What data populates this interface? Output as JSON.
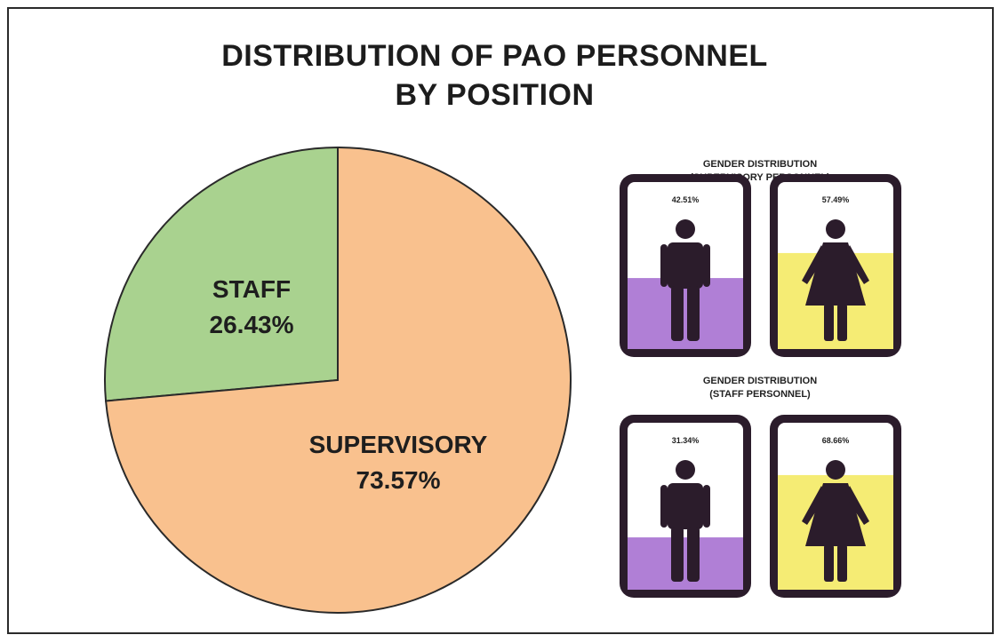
{
  "title_line1": "DISTRIBUTION OF PAO PERSONNEL",
  "title_line2": "BY POSITION",
  "chart_data": [
    {
      "type": "pie",
      "title": "DISTRIBUTION OF PAO PERSONNEL BY POSITION",
      "slices": [
        {
          "label": "STAFF",
          "value": 26.43,
          "value_label": "26.43%",
          "color": "#a9d28f"
        },
        {
          "label": "SUPERVISORY",
          "value": 73.57,
          "value_label": "73.57%",
          "color": "#f9c18e"
        }
      ]
    },
    {
      "type": "bar",
      "title": "GENDER DISTRIBUTION (SUPERVISORY PERSONNEL)",
      "heading_line1": "GENDER DISTRIBUTION",
      "heading_line2": "(SUPERVISORY PERSONNEL)",
      "categories": [
        "male-icon",
        "female-icon"
      ],
      "values": [
        42.51,
        57.49
      ],
      "value_labels": [
        "42.51%",
        "57.49%"
      ],
      "colors": [
        "#b07fd6",
        "#f5ec74"
      ],
      "ylim": [
        0,
        100
      ]
    },
    {
      "type": "bar",
      "title": "GENDER DISTRIBUTION (STAFF PERSONNEL)",
      "heading_line1": "GENDER DISTRIBUTION",
      "heading_line2": "(STAFF PERSONNEL)",
      "categories": [
        "male-icon",
        "female-icon"
      ],
      "values": [
        31.34,
        68.66
      ],
      "value_labels": [
        "31.34%",
        "68.66%"
      ],
      "colors": [
        "#b07fd6",
        "#f5ec74"
      ],
      "ylim": [
        0,
        100
      ]
    }
  ],
  "colors": {
    "pie_outline": "#2a2a2a",
    "card_border": "#2b1c2b",
    "figure": "#2b1c2b"
  }
}
